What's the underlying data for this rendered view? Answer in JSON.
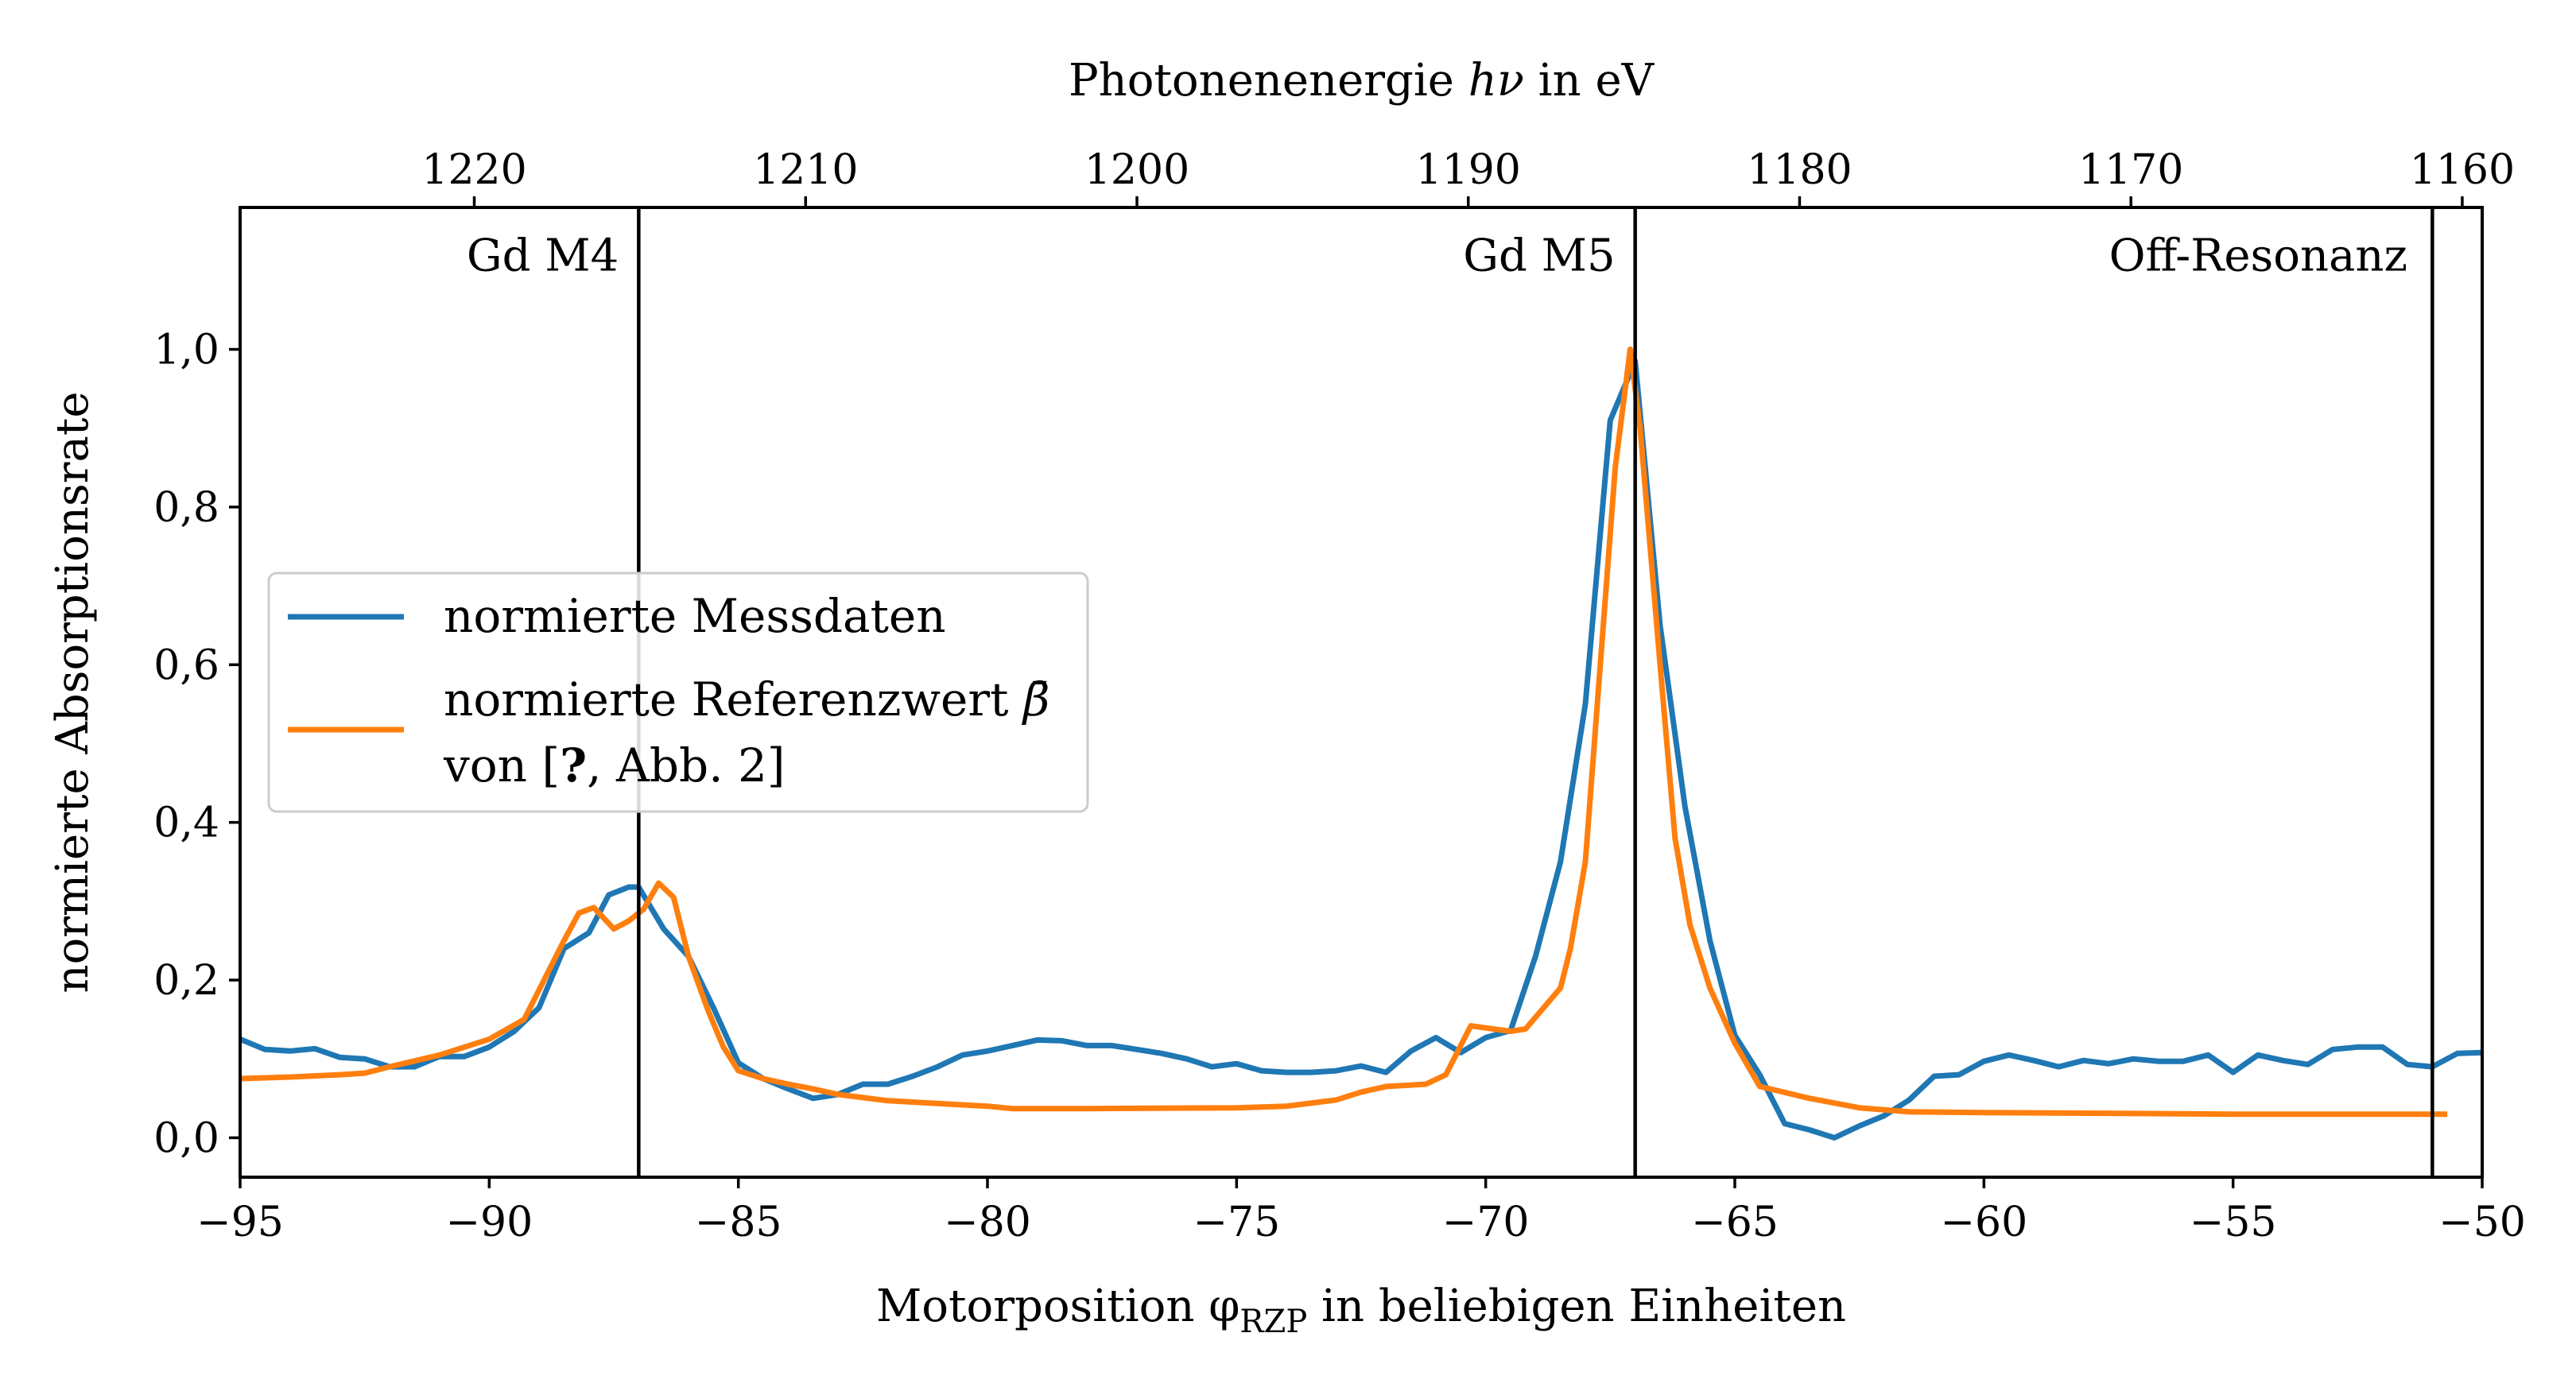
{
  "chart_data": {
    "type": "line",
    "title": "",
    "xlabel": "Motorposition φ_RZP in beliebigen Einheiten",
    "xlabel_main": "Motorposition φ",
    "xlabel_sub": "RZP",
    "xlabel_tail": " in beliebigen Einheiten",
    "ylabel": "normierte Absorptionsrate",
    "top_xlabel": "Photonenenergie hν in eV",
    "top_xlabel_pre": "Photonenenergie ",
    "top_xlabel_math": "hν",
    "top_xlabel_post": " in eV",
    "xlim": [
      -95,
      -50
    ],
    "ylim": [
      -0.05,
      1.18
    ],
    "x_ticks": [
      -95,
      -90,
      -85,
      -80,
      -75,
      -70,
      -65,
      -60,
      -55,
      -50
    ],
    "x_tick_labels": [
      "−95",
      "−90",
      "−85",
      "−80",
      "−75",
      "−70",
      "−65",
      "−60",
      "−55",
      "−50"
    ],
    "y_ticks": [
      0.0,
      0.2,
      0.4,
      0.6,
      0.8,
      1.0
    ],
    "y_tick_labels": [
      "0,0",
      "0,2",
      "0,4",
      "0,6",
      "0,8",
      "1,0"
    ],
    "top_ticks": [
      {
        "x": -90.3,
        "label": "1220"
      },
      {
        "x": -83.65,
        "label": "1210"
      },
      {
        "x": -77.0,
        "label": "1200"
      },
      {
        "x": -70.35,
        "label": "1190"
      },
      {
        "x": -63.7,
        "label": "1180"
      },
      {
        "x": -57.05,
        "label": "1170"
      },
      {
        "x": -50.4,
        "label": "1160"
      }
    ],
    "vertical_lines": [
      -87.0,
      -67.0,
      -51.0
    ],
    "annotations": [
      {
        "text": "Gd M4",
        "x": -87.4,
        "y": 1.12
      },
      {
        "text": "Gd M5",
        "x": -67.4,
        "y": 1.12
      },
      {
        "text": "Off-Resonanz",
        "x": -51.5,
        "y": 1.12
      }
    ],
    "grid": false,
    "legend_position": "center-left",
    "series": [
      {
        "name": "normierte Messdaten",
        "color": "#1f77b4",
        "points": [
          [
            -95.0,
            0.125
          ],
          [
            -94.5,
            0.112
          ],
          [
            -94.0,
            0.11
          ],
          [
            -93.5,
            0.113
          ],
          [
            -93.0,
            0.102
          ],
          [
            -92.5,
            0.1
          ],
          [
            -92.0,
            0.09
          ],
          [
            -91.5,
            0.09
          ],
          [
            -91.0,
            0.103
          ],
          [
            -90.5,
            0.103
          ],
          [
            -90.0,
            0.115
          ],
          [
            -89.5,
            0.135
          ],
          [
            -89.0,
            0.165
          ],
          [
            -88.5,
            0.24
          ],
          [
            -88.0,
            0.26
          ],
          [
            -87.6,
            0.308
          ],
          [
            -87.2,
            0.318
          ],
          [
            -87.0,
            0.318
          ],
          [
            -86.5,
            0.265
          ],
          [
            -86.0,
            0.23
          ],
          [
            -85.5,
            0.165
          ],
          [
            -85.0,
            0.095
          ],
          [
            -84.5,
            0.075
          ],
          [
            -84.0,
            0.062
          ],
          [
            -83.5,
            0.05
          ],
          [
            -83.0,
            0.055
          ],
          [
            -82.5,
            0.068
          ],
          [
            -82.0,
            0.068
          ],
          [
            -81.5,
            0.078
          ],
          [
            -81.0,
            0.09
          ],
          [
            -80.5,
            0.105
          ],
          [
            -80.0,
            0.11
          ],
          [
            -79.5,
            0.117
          ],
          [
            -79.0,
            0.124
          ],
          [
            -78.5,
            0.123
          ],
          [
            -78.0,
            0.117
          ],
          [
            -77.5,
            0.117
          ],
          [
            -77.0,
            0.112
          ],
          [
            -76.5,
            0.107
          ],
          [
            -76.0,
            0.1
          ],
          [
            -75.5,
            0.09
          ],
          [
            -75.0,
            0.094
          ],
          [
            -74.5,
            0.085
          ],
          [
            -74.0,
            0.083
          ],
          [
            -73.5,
            0.083
          ],
          [
            -73.0,
            0.085
          ],
          [
            -72.5,
            0.091
          ],
          [
            -72.0,
            0.083
          ],
          [
            -71.5,
            0.11
          ],
          [
            -71.0,
            0.127
          ],
          [
            -70.5,
            0.108
          ],
          [
            -70.0,
            0.127
          ],
          [
            -69.5,
            0.136
          ],
          [
            -69.0,
            0.23
          ],
          [
            -68.5,
            0.35
          ],
          [
            -68.0,
            0.55
          ],
          [
            -67.5,
            0.91
          ],
          [
            -67.0,
            0.985
          ],
          [
            -66.5,
            0.65
          ],
          [
            -66.0,
            0.42
          ],
          [
            -65.5,
            0.25
          ],
          [
            -65.0,
            0.13
          ],
          [
            -64.5,
            0.08
          ],
          [
            -64.0,
            0.018
          ],
          [
            -63.5,
            0.01
          ],
          [
            -63.0,
            0.0
          ],
          [
            -62.5,
            0.015
          ],
          [
            -62.0,
            0.028
          ],
          [
            -61.5,
            0.048
          ],
          [
            -61.0,
            0.078
          ],
          [
            -60.5,
            0.08
          ],
          [
            -60.0,
            0.097
          ],
          [
            -59.5,
            0.105
          ],
          [
            -59.0,
            0.098
          ],
          [
            -58.5,
            0.09
          ],
          [
            -58.0,
            0.098
          ],
          [
            -57.5,
            0.094
          ],
          [
            -57.0,
            0.1
          ],
          [
            -56.5,
            0.097
          ],
          [
            -56.0,
            0.097
          ],
          [
            -55.5,
            0.105
          ],
          [
            -55.0,
            0.083
          ],
          [
            -54.5,
            0.105
          ],
          [
            -54.0,
            0.098
          ],
          [
            -53.5,
            0.093
          ],
          [
            -53.0,
            0.112
          ],
          [
            -52.5,
            0.115
          ],
          [
            -52.0,
            0.115
          ],
          [
            -51.5,
            0.093
          ],
          [
            -51.0,
            0.09
          ],
          [
            -50.5,
            0.107
          ],
          [
            -50.0,
            0.108
          ],
          [
            -49.5,
            0.097
          ]
        ]
      },
      {
        "name": "normierte Referenzwert β̄ von [?, Abb. 2]",
        "legend_line1_text": "normierte Referenzwert ",
        "legend_line1_math": "β̄",
        "legend_line2_pre": "von [",
        "legend_line2_bold": "?",
        "legend_line2_post": ", Abb. 2]",
        "color": "#ff7f0e",
        "points": [
          [
            -95.0,
            0.075
          ],
          [
            -94.0,
            0.077
          ],
          [
            -93.0,
            0.08
          ],
          [
            -92.5,
            0.082
          ],
          [
            -92.0,
            0.09
          ],
          [
            -91.0,
            0.105
          ],
          [
            -90.0,
            0.125
          ],
          [
            -89.3,
            0.15
          ],
          [
            -88.9,
            0.2
          ],
          [
            -88.5,
            0.25
          ],
          [
            -88.2,
            0.285
          ],
          [
            -87.9,
            0.292
          ],
          [
            -87.5,
            0.265
          ],
          [
            -87.2,
            0.275
          ],
          [
            -86.9,
            0.29
          ],
          [
            -86.6,
            0.323
          ],
          [
            -86.3,
            0.305
          ],
          [
            -86.0,
            0.23
          ],
          [
            -85.6,
            0.16
          ],
          [
            -85.3,
            0.115
          ],
          [
            -85.0,
            0.085
          ],
          [
            -84.5,
            0.075
          ],
          [
            -84.0,
            0.068
          ],
          [
            -83.5,
            0.062
          ],
          [
            -83.0,
            0.055
          ],
          [
            -82.0,
            0.047
          ],
          [
            -80.0,
            0.04
          ],
          [
            -79.5,
            0.037
          ],
          [
            -78.0,
            0.037
          ],
          [
            -75.0,
            0.038
          ],
          [
            -74.0,
            0.04
          ],
          [
            -73.0,
            0.048
          ],
          [
            -72.5,
            0.058
          ],
          [
            -72.0,
            0.065
          ],
          [
            -71.2,
            0.068
          ],
          [
            -70.8,
            0.08
          ],
          [
            -70.3,
            0.142
          ],
          [
            -69.5,
            0.135
          ],
          [
            -69.2,
            0.138
          ],
          [
            -68.5,
            0.19
          ],
          [
            -68.3,
            0.24
          ],
          [
            -68.0,
            0.35
          ],
          [
            -67.7,
            0.6
          ],
          [
            -67.4,
            0.85
          ],
          [
            -67.1,
            1.0
          ],
          [
            -66.9,
            0.9
          ],
          [
            -66.5,
            0.6
          ],
          [
            -66.2,
            0.38
          ],
          [
            -65.9,
            0.27
          ],
          [
            -65.5,
            0.19
          ],
          [
            -65.0,
            0.12
          ],
          [
            -64.5,
            0.065
          ],
          [
            -63.5,
            0.05
          ],
          [
            -62.5,
            0.038
          ],
          [
            -61.5,
            0.033
          ],
          [
            -60.0,
            0.032
          ],
          [
            -55.0,
            0.03
          ],
          [
            -51.0,
            0.03
          ],
          [
            -50.7,
            0.03
          ]
        ]
      }
    ]
  }
}
